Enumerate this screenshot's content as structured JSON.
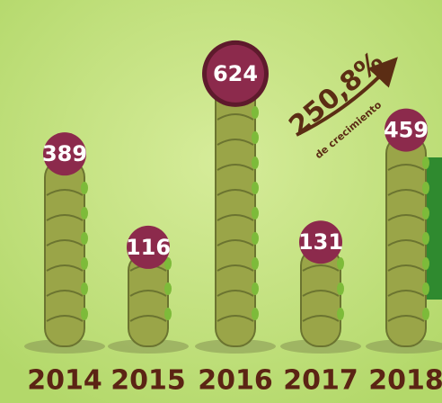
{
  "chart_data": {
    "type": "bar",
    "categories": [
      "2014",
      "2015",
      "2016",
      "2017",
      "2018"
    ],
    "values": [
      389,
      116,
      624,
      131,
      459
    ],
    "color": "#9aa548",
    "label_color": "#8c2a4c",
    "annotation": "250,8%",
    "annotation_sub": "de crecimiento"
  }
}
